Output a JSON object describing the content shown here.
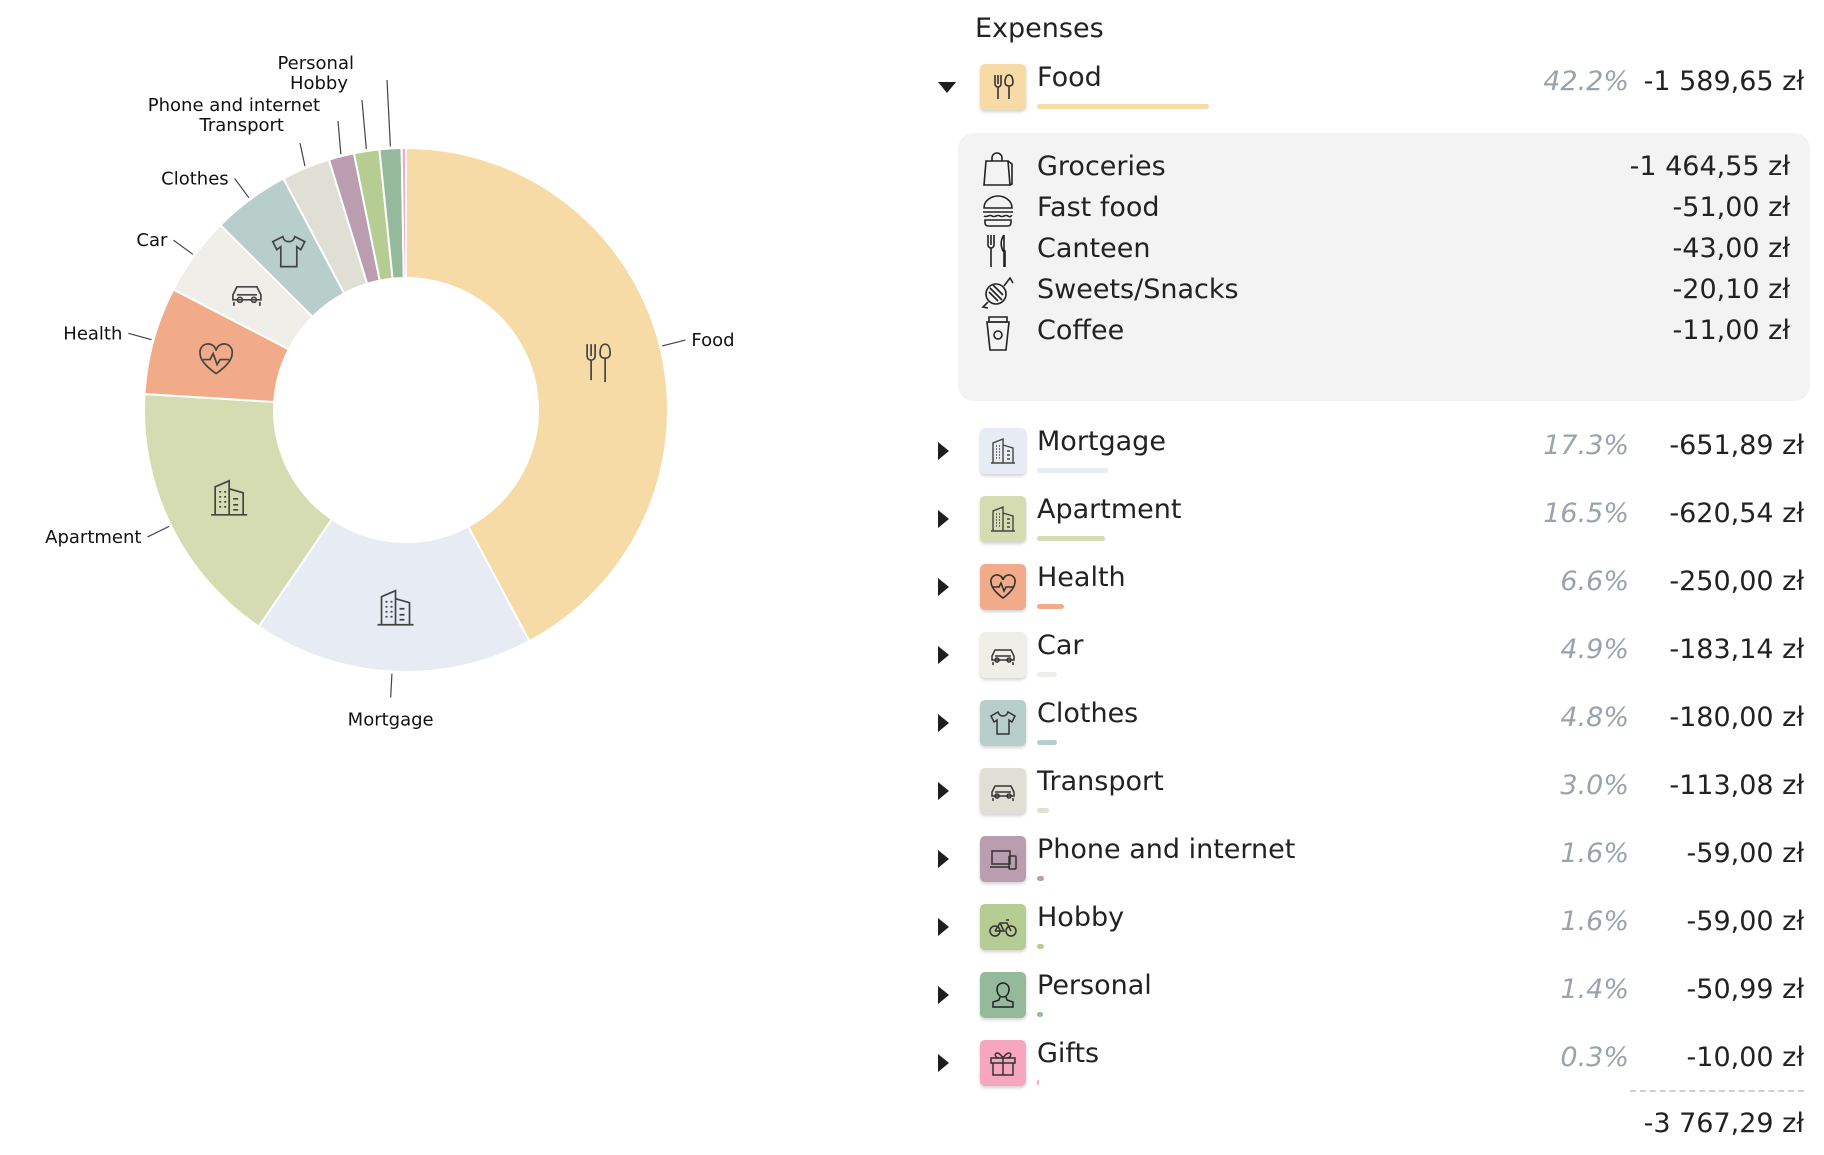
{
  "chart_data": {
    "type": "pie",
    "style": "donut",
    "categories": [
      "Food",
      "Mortgage",
      "Apartment",
      "Health",
      "Car",
      "Clothes",
      "Transport",
      "Phone and internet",
      "Hobby",
      "Personal",
      "Gifts"
    ],
    "values": [
      1589.65,
      651.89,
      620.54,
      250.0,
      183.14,
      180.0,
      113.08,
      59.0,
      59.0,
      50.99,
      10.0
    ],
    "percentages": [
      42.2,
      17.3,
      16.5,
      6.6,
      4.9,
      4.8,
      3.0,
      1.6,
      1.6,
      1.4,
      0.3
    ],
    "colors": [
      "#f6dba6",
      "#e7ebf3",
      "#d5dcb2",
      "#f1ab88",
      "#efeee8",
      "#b7ceca",
      "#dfdfd6",
      "#bb9db0",
      "#b5cc92",
      "#95b99b",
      "#f6a6bf"
    ],
    "slice_labels": [
      "Food",
      "Mortgage",
      "Apartment",
      "Health",
      "Car",
      "Clothes",
      "Transport",
      "Phone and internet",
      "Hobby",
      "Personal",
      ""
    ],
    "slice_icons": [
      "fork-knife-icon",
      "building-icon",
      "building-icon",
      "heart-pulse-icon",
      "car-icon",
      "shirt-icon",
      "",
      "",
      "",
      "",
      ""
    ],
    "title": ""
  },
  "panel": {
    "title": "Expenses",
    "categories": [
      {
        "name": "Food",
        "pct": "42.2%",
        "amount": "-1 589,65 zł",
        "color": "#f6dba6",
        "icon": "fork-knife-icon",
        "expanded": true,
        "bar": 0.42
      },
      {
        "name": "Mortgage",
        "pct": "17.3%",
        "amount": "-651,89 zł",
        "color": "#e7ebf3",
        "icon": "building-icon",
        "expanded": false,
        "bar": 0.173
      },
      {
        "name": "Apartment",
        "pct": "16.5%",
        "amount": "-620,54 zł",
        "color": "#d5dcb2",
        "icon": "building-icon",
        "expanded": false,
        "bar": 0.165
      },
      {
        "name": "Health",
        "pct": "6.6%",
        "amount": "-250,00 zł",
        "color": "#f1ab88",
        "icon": "heart-pulse-icon",
        "expanded": false,
        "bar": 0.066
      },
      {
        "name": "Car",
        "pct": "4.9%",
        "amount": "-183,14 zł",
        "color": "#efeee8",
        "icon": "car-icon",
        "expanded": false,
        "bar": 0.049
      },
      {
        "name": "Clothes",
        "pct": "4.8%",
        "amount": "-180,00 zł",
        "color": "#b7ceca",
        "icon": "shirt-icon",
        "expanded": false,
        "bar": 0.048
      },
      {
        "name": "Transport",
        "pct": "3.0%",
        "amount": "-113,08 zł",
        "color": "#dfdfd6",
        "icon": "car-icon",
        "expanded": false,
        "bar": 0.03
      },
      {
        "name": "Phone and internet",
        "pct": "1.6%",
        "amount": "-59,00 zł",
        "color": "#bb9db0",
        "icon": "devices-icon",
        "expanded": false,
        "bar": 0.016
      },
      {
        "name": "Hobby",
        "pct": "1.6%",
        "amount": "-59,00 zł",
        "color": "#b5cc92",
        "icon": "bicycle-icon",
        "expanded": false,
        "bar": 0.016
      },
      {
        "name": "Personal",
        "pct": "1.4%",
        "amount": "-50,99 zł",
        "color": "#95b99b",
        "icon": "person-icon",
        "expanded": false,
        "bar": 0.014
      },
      {
        "name": "Gifts",
        "pct": "0.3%",
        "amount": "-10,00 zł",
        "color": "#f6a6bf",
        "icon": "gift-icon",
        "expanded": false,
        "bar": 0.003
      }
    ],
    "food_subcategories": [
      {
        "name": "Groceries",
        "amount": "-1 464,55 zł",
        "icon": "shopping-bag-icon"
      },
      {
        "name": "Fast food",
        "amount": "-51,00 zł",
        "icon": "burger-icon"
      },
      {
        "name": "Canteen",
        "amount": "-43,00 zł",
        "icon": "cutlery-icon"
      },
      {
        "name": "Sweets/Snacks",
        "amount": "-20,10 zł",
        "icon": "candy-icon"
      },
      {
        "name": "Coffee",
        "amount": "-11,00 zł",
        "icon": "coffee-cup-icon"
      }
    ],
    "total": "-3 767,29 zł"
  }
}
